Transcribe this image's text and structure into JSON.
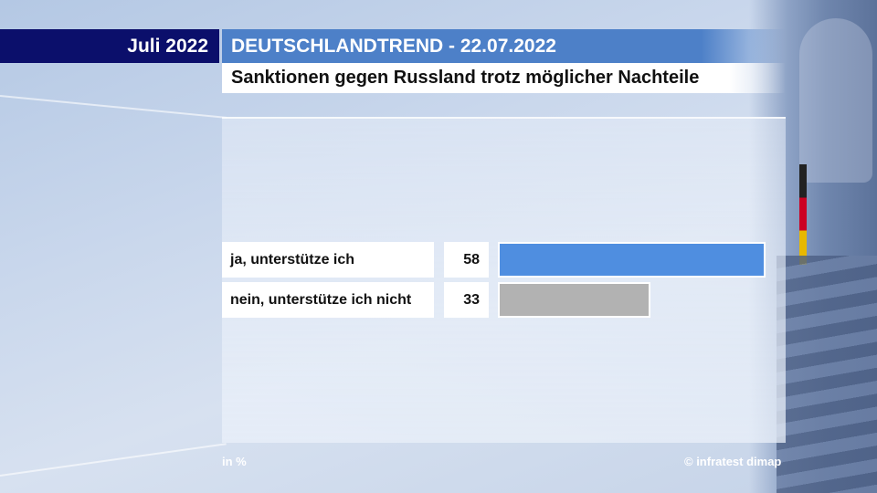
{
  "header": {
    "month": "Juli 2022",
    "kicker": "DEUTSCHLANDTREND - 22.07.2022",
    "title": "Sanktionen gegen Russland trotz möglicher Nachteile"
  },
  "footer": {
    "unit": "in %",
    "source": "© infratest dimap"
  },
  "colors": {
    "navy": "#0b0f6b",
    "kicker_blue": "#4d80c8",
    "bar_yes": "#4f8ee0",
    "bar_no": "#b2b2b2"
  },
  "chart_data": {
    "type": "bar",
    "orientation": "horizontal",
    "title": "Sanktionen gegen Russland trotz möglicher Nachteile",
    "categories": [
      "ja, unterstütze ich",
      "nein, unterstütze ich nicht"
    ],
    "values": [
      58,
      33
    ],
    "value_labels": [
      "58",
      "33"
    ],
    "colors": [
      "#4f8ee0",
      "#b2b2b2"
    ],
    "unit": "in %",
    "grid": false
  }
}
